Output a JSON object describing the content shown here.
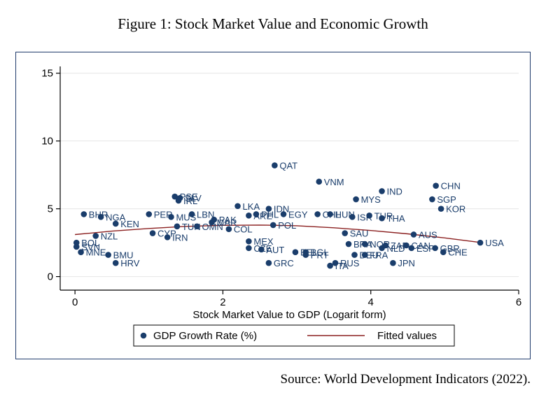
{
  "figure_title": "Figure 1: Stock Market Value and Economic Growth",
  "source_note": "Source: World Development Indicators (2022).",
  "colors": {
    "marker": "#1a3d6b",
    "fit_line": "#8b2020",
    "axis": "#000000",
    "grid": "#e6e6e6",
    "frame": "#1f3b6b"
  },
  "chart_data": {
    "type": "scatter",
    "xlabel": "Stock Market Value to GDP (Logarit form)",
    "ylabel": "",
    "xlim": [
      -0.2,
      6.0
    ],
    "ylim": [
      -1.0,
      15.5
    ],
    "xticks": [
      0,
      2,
      4,
      6
    ],
    "yticks": [
      0,
      5,
      10,
      15
    ],
    "grid": true,
    "legend_position": "bottom",
    "legend": [
      {
        "label": "GDP Growth Rate (%)",
        "kind": "marker"
      },
      {
        "label": "Fitted values",
        "kind": "line"
      }
    ],
    "points": [
      {
        "label": "QAT",
        "x": 2.7,
        "y": 8.2
      },
      {
        "label": "VNM",
        "x": 3.3,
        "y": 7.0
      },
      {
        "label": "CHN",
        "x": 4.88,
        "y": 6.7
      },
      {
        "label": "IND",
        "x": 4.15,
        "y": 6.3
      },
      {
        "label": "MYS",
        "x": 3.8,
        "y": 5.7
      },
      {
        "label": "SGP",
        "x": 4.83,
        "y": 5.7
      },
      {
        "label": "KOR",
        "x": 4.95,
        "y": 5.0
      },
      {
        "label": "PSE",
        "x": 1.35,
        "y": 5.9
      },
      {
        "label": "SLV",
        "x": 1.42,
        "y": 5.8
      },
      {
        "label": "IRL",
        "x": 1.4,
        "y": 5.6
      },
      {
        "label": "LKA",
        "x": 2.2,
        "y": 5.2
      },
      {
        "label": "IDN",
        "x": 2.62,
        "y": 5.0
      },
      {
        "label": "BHR",
        "x": 0.12,
        "y": 4.6
      },
      {
        "label": "NGA",
        "x": 0.35,
        "y": 4.4
      },
      {
        "label": "KEN",
        "x": 0.55,
        "y": 3.9
      },
      {
        "label": "PER",
        "x": 1.0,
        "y": 4.6
      },
      {
        "label": "MUS",
        "x": 1.3,
        "y": 4.4
      },
      {
        "label": "LBN",
        "x": 1.58,
        "y": 4.6
      },
      {
        "label": "PAK",
        "x": 1.88,
        "y": 4.2
      },
      {
        "label": "MAR",
        "x": 1.85,
        "y": 4.0
      },
      {
        "label": "PHL",
        "x": 2.45,
        "y": 4.6
      },
      {
        "label": "ARE",
        "x": 2.35,
        "y": 4.5
      },
      {
        "label": "EGY",
        "x": 2.82,
        "y": 4.6
      },
      {
        "label": "POL",
        "x": 2.68,
        "y": 3.8
      },
      {
        "label": "CHL",
        "x": 3.28,
        "y": 4.6
      },
      {
        "label": "HUN",
        "x": 3.45,
        "y": 4.6
      },
      {
        "label": "ISR",
        "x": 3.75,
        "y": 4.4
      },
      {
        "label": "TUR",
        "x": 3.98,
        "y": 4.5
      },
      {
        "label": "THA",
        "x": 4.15,
        "y": 4.3
      },
      {
        "label": "TUN",
        "x": 1.38,
        "y": 3.7
      },
      {
        "label": "OMN",
        "x": 1.65,
        "y": 3.7
      },
      {
        "label": "COL",
        "x": 2.08,
        "y": 3.5
      },
      {
        "label": "CYP",
        "x": 1.05,
        "y": 3.2
      },
      {
        "label": "IRN",
        "x": 1.25,
        "y": 2.9
      },
      {
        "label": "NZL",
        "x": 0.28,
        "y": 3.0
      },
      {
        "label": "SAU",
        "x": 3.65,
        "y": 3.2
      },
      {
        "label": "AUS",
        "x": 4.58,
        "y": 3.1
      },
      {
        "label": "MEX",
        "x": 2.35,
        "y": 2.6
      },
      {
        "label": "CZE",
        "x": 2.35,
        "y": 2.1
      },
      {
        "label": "AUT",
        "x": 2.52,
        "y": 2.0
      },
      {
        "label": "BRA",
        "x": 3.7,
        "y": 2.4
      },
      {
        "label": "NOR",
        "x": 3.92,
        "y": 2.4
      },
      {
        "label": "ZAF",
        "x": 4.2,
        "y": 2.3
      },
      {
        "label": "CAN",
        "x": 4.48,
        "y": 2.3
      },
      {
        "label": "NLD",
        "x": 4.15,
        "y": 2.1
      },
      {
        "label": "ESP",
        "x": 4.55,
        "y": 2.1
      },
      {
        "label": "GBR",
        "x": 4.87,
        "y": 2.1
      },
      {
        "label": "CHE",
        "x": 4.98,
        "y": 1.8
      },
      {
        "label": "USA",
        "x": 5.48,
        "y": 2.5
      },
      {
        "label": "BEL",
        "x": 2.98,
        "y": 1.8
      },
      {
        "label": "BGL",
        "x": 3.12,
        "y": 1.8
      },
      {
        "label": "PRT",
        "x": 3.12,
        "y": 1.6
      },
      {
        "label": "DEU",
        "x": 3.78,
        "y": 1.6
      },
      {
        "label": "FRA",
        "x": 3.92,
        "y": 1.6
      },
      {
        "label": "GRC",
        "x": 2.62,
        "y": 1.0
      },
      {
        "label": "RUS",
        "x": 3.52,
        "y": 1.0
      },
      {
        "label": "ITA",
        "x": 3.45,
        "y": 0.8
      },
      {
        "label": "JPN",
        "x": 4.3,
        "y": 1.0
      },
      {
        "label": "BOL",
        "x": 0.02,
        "y": 2.5
      },
      {
        "label": "SVN",
        "x": 0.02,
        "y": 2.2
      },
      {
        "label": "MNE",
        "x": 0.08,
        "y": 1.8
      },
      {
        "label": "BMU",
        "x": 0.45,
        "y": 1.6
      },
      {
        "label": "HRV",
        "x": 0.55,
        "y": 1.0
      }
    ],
    "fitted_curve": {
      "label": "Fitted values",
      "x": [
        0.0,
        0.5,
        1.0,
        1.5,
        2.0,
        2.5,
        3.0,
        3.5,
        4.0,
        4.5,
        5.0,
        5.5
      ],
      "y": [
        3.1,
        3.35,
        3.55,
        3.7,
        3.78,
        3.8,
        3.75,
        3.6,
        3.4,
        3.15,
        2.85,
        2.5
      ]
    }
  }
}
